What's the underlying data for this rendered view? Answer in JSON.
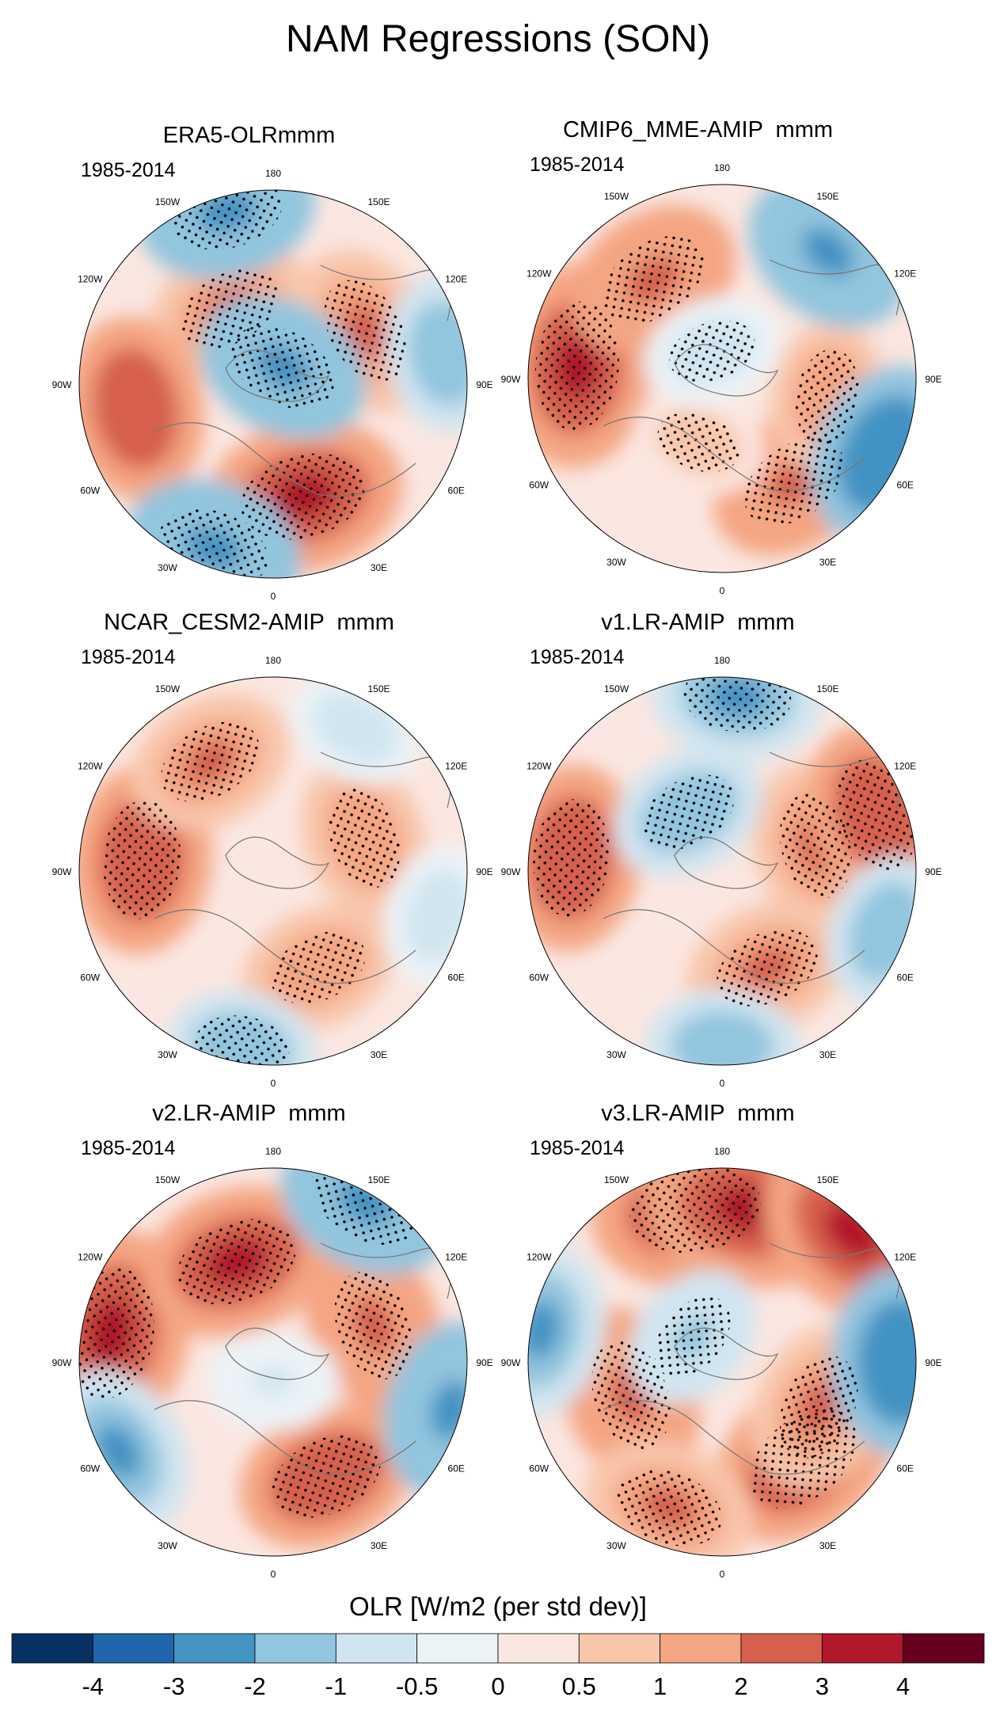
{
  "title": "NAM Regressions (SON)",
  "chart_data": {
    "type": "heatmap",
    "projection": "north-polar-stereographic",
    "variable": "OLR [W/m2 (per std dev)]",
    "longitude_labels": [
      "180",
      "150E",
      "120E",
      "90E",
      "60E",
      "30E",
      "0",
      "30W",
      "60W",
      "90W",
      "120W",
      "150W"
    ],
    "stippling": "statistically significant regions",
    "panels": [
      {
        "title": "ERA5-OLRmmm",
        "period": "1985-2014",
        "features": [
          {
            "lon": 120,
            "r": 0.55,
            "value": 2.2,
            "stipple": true
          },
          {
            "lon": -150,
            "r": 0.45,
            "value": 2.0,
            "stipple": true
          },
          {
            "lon": 15,
            "r": 0.6,
            "value": 3.3,
            "stipple": true
          },
          {
            "lon": -80,
            "r": 0.72,
            "value": 2.6,
            "stipple": false
          },
          {
            "lon": 150,
            "r": 0.1,
            "value": -2.3,
            "stipple": true
          },
          {
            "lon": -20,
            "r": 0.9,
            "value": -2.4,
            "stipple": true
          },
          {
            "lon": -165,
            "r": 0.92,
            "value": -2.4,
            "stipple": true
          },
          {
            "lon": 100,
            "r": 0.9,
            "value": -1.6,
            "stipple": false
          }
        ]
      },
      {
        "title": "CMIP6_MME-AMIP  mmm",
        "period": "1985-2014",
        "features": [
          {
            "lon": -95,
            "r": 0.75,
            "value": 3.4,
            "stipple": true
          },
          {
            "lon": -145,
            "r": 0.62,
            "value": 2.4,
            "stipple": true
          },
          {
            "lon": 35,
            "r": 0.65,
            "value": 2.3,
            "stipple": true
          },
          {
            "lon": 80,
            "r": 0.55,
            "value": 1.4,
            "stipple": true
          },
          {
            "lon": -20,
            "r": 0.35,
            "value": 0.7,
            "stipple": true
          },
          {
            "lon": 140,
            "r": 0.85,
            "value": -2.3,
            "stipple": false
          },
          {
            "lon": 65,
            "r": 0.92,
            "value": -2.6,
            "stipple": false
          },
          {
            "lon": -160,
            "r": 0.15,
            "value": -0.9,
            "stipple": true
          }
        ]
      },
      {
        "title": "NCAR_CESM2-AMIP  mmm",
        "period": "1985-2014",
        "features": [
          {
            "lon": -95,
            "r": 0.68,
            "value": 2.8,
            "stipple": true
          },
          {
            "lon": -150,
            "r": 0.65,
            "value": 2.0,
            "stipple": true
          },
          {
            "lon": 110,
            "r": 0.5,
            "value": 1.8,
            "stipple": true
          },
          {
            "lon": 25,
            "r": 0.55,
            "value": 1.6,
            "stipple": true
          },
          {
            "lon": -10,
            "r": 0.92,
            "value": -1.3,
            "stipple": true
          },
          {
            "lon": 150,
            "r": 0.85,
            "value": -0.8,
            "stipple": false
          },
          {
            "lon": 75,
            "r": 0.88,
            "value": -1.0,
            "stipple": false
          }
        ]
      },
      {
        "title": "v1.LR-AMIP  mmm",
        "period": "1985-2014",
        "features": [
          {
            "lon": -95,
            "r": 0.78,
            "value": 2.7,
            "stipple": true
          },
          {
            "lon": 105,
            "r": 0.5,
            "value": 2.0,
            "stipple": true
          },
          {
            "lon": 110,
            "r": 0.85,
            "value": 2.5,
            "stipple": true
          },
          {
            "lon": 25,
            "r": 0.55,
            "value": 2.0,
            "stipple": true
          },
          {
            "lon": -150,
            "r": 0.35,
            "value": -1.6,
            "stipple": true
          },
          {
            "lon": 175,
            "r": 0.9,
            "value": -2.1,
            "stipple": true
          },
          {
            "lon": 0,
            "r": 0.9,
            "value": -1.4,
            "stipple": false
          },
          {
            "lon": 70,
            "r": 0.9,
            "value": -1.4,
            "stipple": false
          }
        ]
      },
      {
        "title": "v2.LR-AMIP  mmm",
        "period": "1985-2014",
        "features": [
          {
            "lon": -100,
            "r": 0.85,
            "value": 3.6,
            "stipple": true
          },
          {
            "lon": -160,
            "r": 0.55,
            "value": 3.0,
            "stipple": true
          },
          {
            "lon": 110,
            "r": 0.55,
            "value": 2.3,
            "stipple": true
          },
          {
            "lon": 25,
            "r": 0.65,
            "value": 2.5,
            "stipple": true
          },
          {
            "lon": 150,
            "r": 0.95,
            "value": -2.4,
            "stipple": true
          },
          {
            "lon": 75,
            "r": 0.95,
            "value": -2.4,
            "stipple": false
          },
          {
            "lon": -60,
            "r": 0.92,
            "value": -2.2,
            "stipple": false
          },
          {
            "lon": 0,
            "r": 0.1,
            "value": -0.6,
            "stipple": false
          }
        ]
      },
      {
        "title": "v3.LR-AMIP  mmm",
        "period": "1985-2014",
        "features": [
          {
            "lon": -170,
            "r": 0.8,
            "value": 3.6,
            "stipple": true
          },
          {
            "lon": 170,
            "r": 0.8,
            "value": 3.6,
            "stipple": false
          },
          {
            "lon": 135,
            "r": 0.95,
            "value": 3.3,
            "stipple": false
          },
          {
            "lon": 40,
            "r": 0.65,
            "value": 3.0,
            "stipple": true
          },
          {
            "lon": 65,
            "r": 0.55,
            "value": 2.1,
            "stipple": true
          },
          {
            "lon": -70,
            "r": 0.5,
            "value": 2.4,
            "stipple": true
          },
          {
            "lon": -20,
            "r": 0.8,
            "value": 2.2,
            "stipple": true
          },
          {
            "lon": -100,
            "r": 0.95,
            "value": -2.2,
            "stipple": false
          },
          {
            "lon": 90,
            "r": 0.92,
            "value": -2.8,
            "stipple": false
          },
          {
            "lon": -130,
            "r": 0.2,
            "value": -1.2,
            "stipple": true
          }
        ]
      }
    ],
    "colorbar": {
      "label": "OLR [W/m2 (per std dev)]",
      "levels": [
        "-4",
        "-3",
        "-2",
        "-1",
        "-0.5",
        "0",
        "0.5",
        "1",
        "2",
        "3",
        "4"
      ],
      "colors": [
        "#073162",
        "#2166ac",
        "#4393c3",
        "#92c5de",
        "#d1e5f0",
        "#ecf3f7",
        "#fbe7e1",
        "#f8c6ab",
        "#f4a582",
        "#d6604d",
        "#b2182b",
        "#67001f"
      ]
    }
  }
}
